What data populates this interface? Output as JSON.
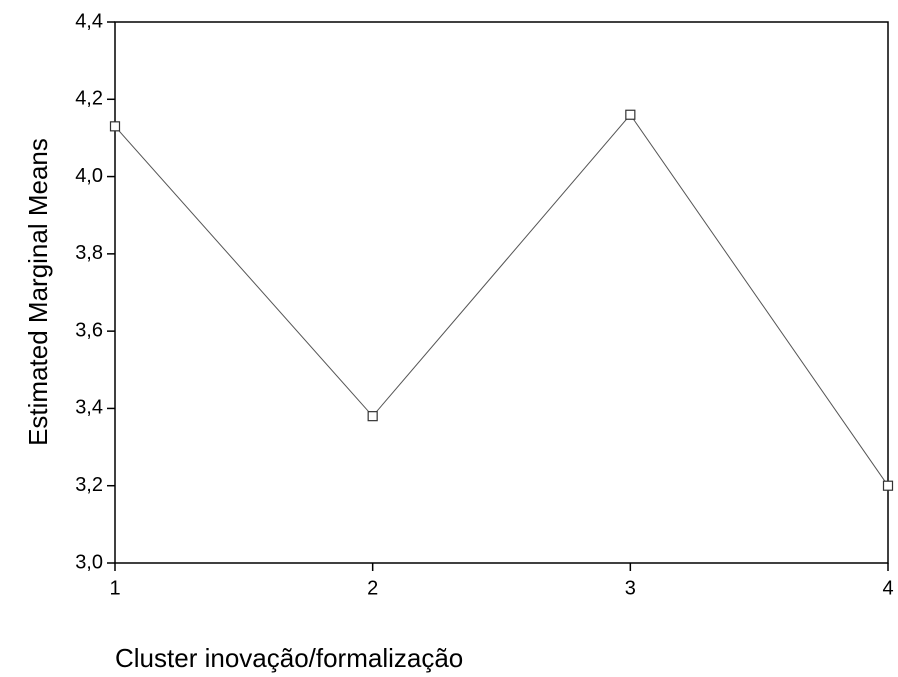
{
  "chart_data": {
    "type": "line",
    "x_label": "Cluster inovação/formalização",
    "y_label": "Estimated Marginal Means",
    "x": [
      1,
      2,
      3,
      4
    ],
    "values": [
      4.13,
      3.38,
      4.16,
      3.2
    ],
    "color": "#555555",
    "xlim": [
      1,
      4
    ],
    "xticks": [
      1,
      2,
      3,
      4
    ],
    "ylim": [
      3.0,
      4.4
    ],
    "yticks": [
      {
        "value": 3.0,
        "label": "3,0"
      },
      {
        "value": 3.2,
        "label": "3,2"
      },
      {
        "value": 3.4,
        "label": "3,4"
      },
      {
        "value": 3.6,
        "label": "3,6"
      },
      {
        "value": 3.8,
        "label": "3,8"
      },
      {
        "value": 4.0,
        "label": "4,0"
      },
      {
        "value": 4.2,
        "label": "4,2"
      },
      {
        "value": 4.4,
        "label": "4,4"
      }
    ],
    "grid": false
  }
}
